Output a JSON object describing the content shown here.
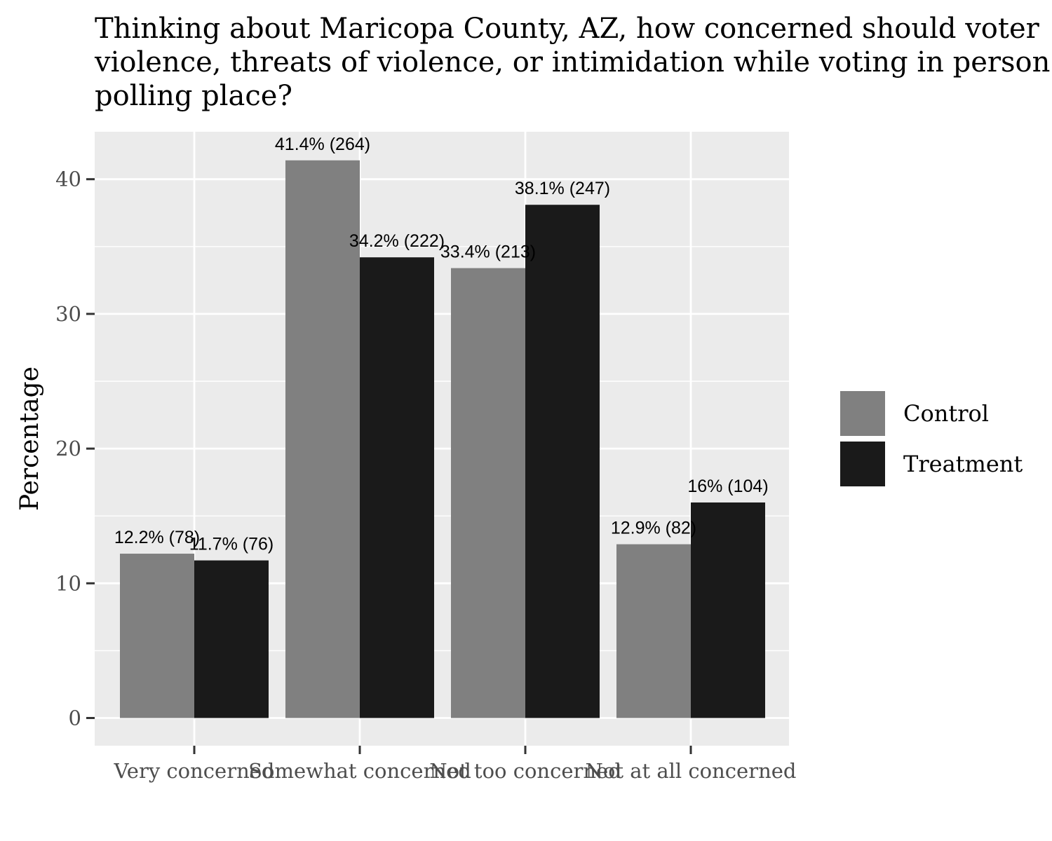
{
  "chart_data": {
    "type": "bar",
    "title": "Thinking about Maricopa County, AZ, how concerned should voter violence, threats of violence, or intimidation while voting in person polling place?",
    "title_lines": [
      "Thinking about Maricopa County, AZ, how concerned should voter",
      "violence, threats of violence, or intimidation while voting in person",
      "polling place?"
    ],
    "xlabel": "",
    "ylabel": "Percentage",
    "ylim": [
      0,
      43.5
    ],
    "yticks": [
      0,
      10,
      20,
      30,
      40
    ],
    "grid": true,
    "legend_position": "right",
    "categories": [
      "Very concerned",
      "Somewhat concerned",
      "Not too concerned",
      "Not at all concerned"
    ],
    "series": [
      {
        "name": "Control",
        "color": "#808080",
        "values": [
          12.2,
          41.4,
          33.4,
          12.9
        ],
        "labels": [
          "12.2% (78)",
          "41.4% (264)",
          "33.4% (213)",
          "12.9% (82)"
        ]
      },
      {
        "name": "Treatment",
        "color": "#1a1a1a",
        "values": [
          11.7,
          34.2,
          38.1,
          16.0
        ],
        "labels": [
          "11.7% (76)",
          "34.2% (222)",
          "38.1% (247)",
          "16% (104)"
        ]
      }
    ]
  }
}
